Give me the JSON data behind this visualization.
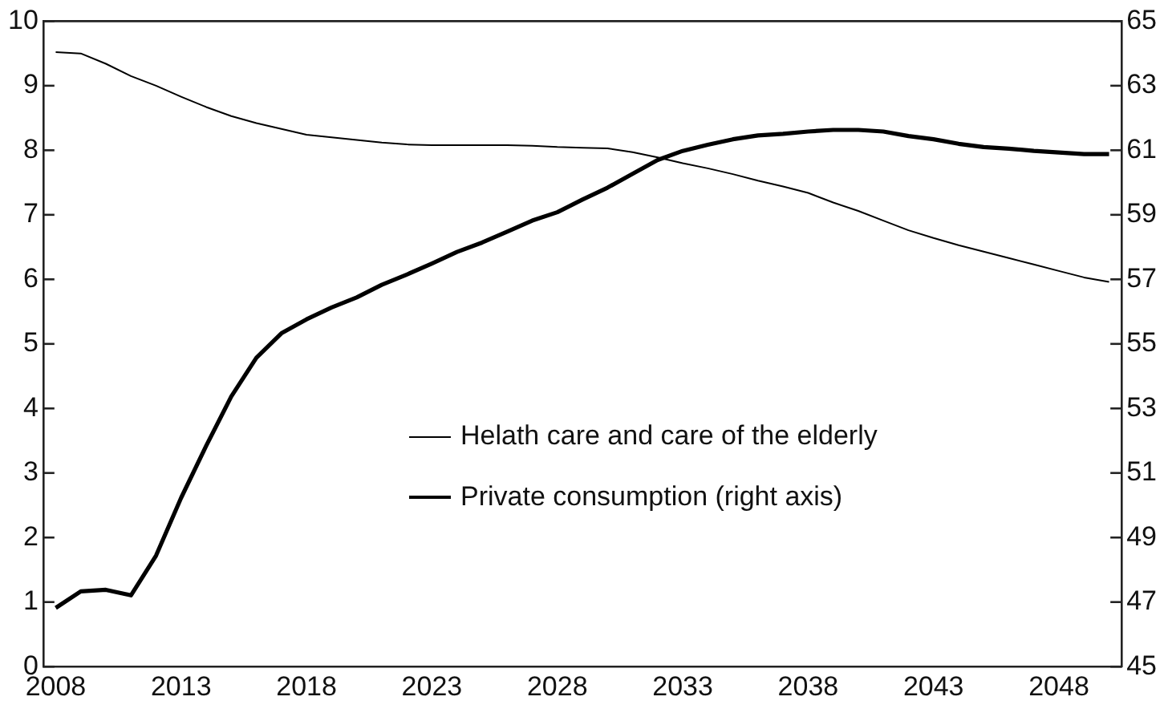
{
  "chart_data": {
    "type": "line",
    "x": [
      2008,
      2009,
      2010,
      2011,
      2012,
      2013,
      2014,
      2015,
      2016,
      2017,
      2018,
      2019,
      2020,
      2021,
      2022,
      2023,
      2024,
      2025,
      2026,
      2027,
      2028,
      2029,
      2030,
      2031,
      2032,
      2033,
      2034,
      2035,
      2036,
      2037,
      2038,
      2039,
      2040,
      2041,
      2042,
      2043,
      2044,
      2045,
      2046,
      2047,
      2048,
      2049,
      2050
    ],
    "series": [
      {
        "name": "Helath care and care of the elderly",
        "color": "#000000",
        "values": [
          9.52,
          9.5,
          9.34,
          9.15,
          9.0,
          8.83,
          8.67,
          8.53,
          8.42,
          8.33,
          8.24,
          8.2,
          8.16,
          8.12,
          8.09,
          8.08,
          8.08,
          8.08,
          8.08,
          8.07,
          8.05,
          8.04,
          8.03,
          7.97,
          7.89,
          7.8,
          7.72,
          7.63,
          7.53,
          7.44,
          7.34,
          7.19,
          7.06,
          6.91,
          6.76,
          6.64,
          6.53,
          6.43,
          6.33,
          6.23,
          6.13,
          6.03,
          5.96
        ]
      },
      {
        "name": "Private consumption (right axis)",
        "color": "#000000",
        "axis": "y2",
        "values": [
          46.82,
          47.33,
          47.38,
          47.21,
          48.44,
          50.23,
          51.84,
          53.37,
          54.57,
          55.33,
          55.76,
          56.13,
          56.44,
          56.83,
          57.15,
          57.49,
          57.85,
          58.14,
          58.48,
          58.82,
          59.08,
          59.47,
          59.84,
          60.27,
          60.7,
          60.98,
          61.17,
          61.34,
          61.46,
          61.51,
          61.58,
          61.63,
          61.63,
          61.58,
          61.44,
          61.34,
          61.2,
          61.1,
          61.05,
          60.98,
          60.93,
          60.88,
          60.88
        ]
      }
    ],
    "xlim": [
      2007.5,
      2050.5
    ],
    "xticks": [
      2008,
      2013,
      2018,
      2023,
      2028,
      2033,
      2038,
      2043,
      2048
    ],
    "ylim": [
      0,
      10
    ],
    "yticks": [
      0,
      1,
      2,
      3,
      4,
      5,
      6,
      7,
      8,
      9,
      10
    ],
    "y2lim": [
      45,
      65
    ],
    "y2ticks": [
      45,
      47,
      49,
      51,
      53,
      55,
      57,
      59,
      61,
      63,
      65
    ],
    "grid": false,
    "legend": "bottom right",
    "marker": "none",
    "line_style": "solid"
  }
}
